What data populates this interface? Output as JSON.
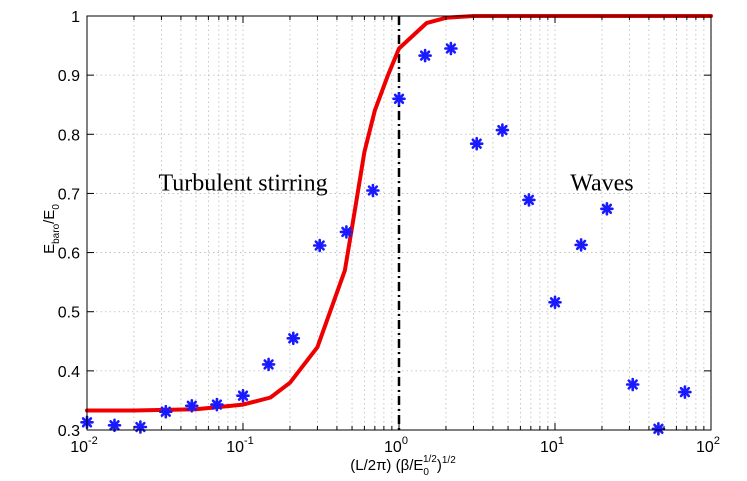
{
  "chart_data": {
    "type": "scatter",
    "title": "",
    "xscale": "log",
    "xlim": [
      0.01,
      100
    ],
    "ylim": [
      0.3,
      1.0
    ],
    "grid": true,
    "xlabel": {
      "base": "(L/2π) (β/E",
      "sub": "0",
      "sup": "1/2",
      "tail": ")",
      "tail_sup": "1/2"
    },
    "ylabel": {
      "base": "E",
      "sub": "baro",
      "mid": "/E",
      "sub2": "0"
    },
    "x_ticks": [
      {
        "value": 0.01,
        "base": "10",
        "exp": "-2"
      },
      {
        "value": 0.1,
        "base": "10",
        "exp": "-1"
      },
      {
        "value": 1,
        "base": "10",
        "exp": "0"
      },
      {
        "value": 10,
        "base": "10",
        "exp": "1"
      },
      {
        "value": 100,
        "base": "10",
        "exp": "2"
      }
    ],
    "y_ticks": [
      "0.3",
      "0.4",
      "0.5",
      "0.6",
      "0.7",
      "0.8",
      "0.9",
      "1"
    ],
    "annotations": [
      {
        "text": "Turbulent stirring",
        "x": 0.1,
        "y": 0.705
      },
      {
        "text": "Waves",
        "x": 20,
        "y": 0.705
      }
    ],
    "vertical_line": {
      "x": 1.0,
      "style": "dash-dot",
      "color": "#000000"
    },
    "series": [
      {
        "name": "markers",
        "kind": "scatter",
        "marker": "*",
        "color": "#1a1aff",
        "points": [
          [
            0.01,
            0.313
          ],
          [
            0.015,
            0.308
          ],
          [
            0.022,
            0.305
          ],
          [
            0.032,
            0.331
          ],
          [
            0.047,
            0.341
          ],
          [
            0.068,
            0.343
          ],
          [
            0.1,
            0.358
          ],
          [
            0.146,
            0.411
          ],
          [
            0.21,
            0.455
          ],
          [
            0.31,
            0.612
          ],
          [
            0.46,
            0.635
          ],
          [
            0.68,
            0.705
          ],
          [
            1.0,
            0.86
          ],
          [
            1.47,
            0.933
          ],
          [
            2.15,
            0.945
          ],
          [
            3.15,
            0.784
          ],
          [
            4.6,
            0.807
          ],
          [
            6.8,
            0.689
          ],
          [
            10,
            0.516
          ],
          [
            14.7,
            0.613
          ],
          [
            21.5,
            0.674
          ],
          [
            31.5,
            0.377
          ],
          [
            46,
            0.302
          ],
          [
            68,
            0.364
          ]
        ]
      },
      {
        "name": "curve",
        "kind": "line",
        "color": "#ee0000",
        "points": [
          [
            0.01,
            0.333
          ],
          [
            0.02,
            0.333
          ],
          [
            0.05,
            0.335
          ],
          [
            0.1,
            0.343
          ],
          [
            0.15,
            0.355
          ],
          [
            0.2,
            0.38
          ],
          [
            0.3,
            0.44
          ],
          [
            0.45,
            0.57
          ],
          [
            0.52,
            0.67
          ],
          [
            0.6,
            0.77
          ],
          [
            0.7,
            0.84
          ],
          [
            0.85,
            0.9
          ],
          [
            1.0,
            0.945
          ],
          [
            1.5,
            0.988
          ],
          [
            2.0,
            0.997
          ],
          [
            3.0,
            1.0
          ],
          [
            10,
            1.0
          ],
          [
            100,
            1.0
          ]
        ]
      }
    ]
  }
}
